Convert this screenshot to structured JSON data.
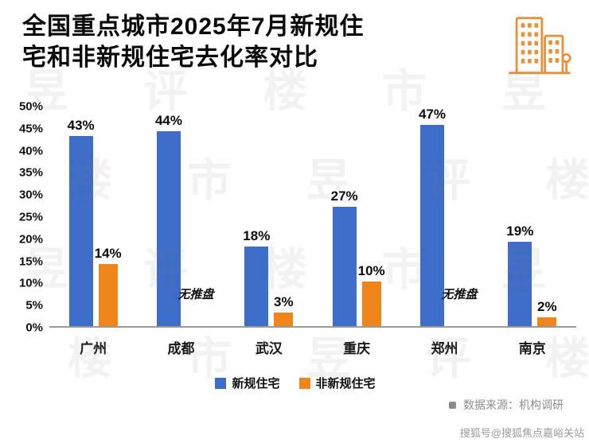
{
  "header": {
    "title_line1": "全国重点城市2025年7月新规住",
    "title_line2": "宅和非新规住宅去化率对比",
    "icon_color": "#E8913C"
  },
  "chart_data": {
    "type": "bar",
    "title": "全国重点城市2025年7月新规住宅和非新规住宅去化率对比",
    "categories": [
      "广州",
      "成都",
      "武汉",
      "重庆",
      "郑州",
      "南京"
    ],
    "series": [
      {
        "name": "新规住宅",
        "color": "#3E6DC9",
        "values": [
          43,
          44,
          18,
          27,
          47,
          19
        ]
      },
      {
        "name": "非新规住宅",
        "color": "#F08519",
        "values": [
          14,
          null,
          3,
          10,
          null,
          2
        ]
      }
    ],
    "no_data_label": "无推盘",
    "value_suffix": "%",
    "y_ticks": [
      "50%",
      "45%",
      "40%",
      "35%",
      "30%",
      "25%",
      "20%",
      "15%",
      "10%",
      "5%",
      "0%"
    ],
    "ylim": [
      0,
      50
    ],
    "grid": false,
    "legend_position": "bottom"
  },
  "footer": {
    "source_label": "数据来源：机构调研",
    "byline": "搜狐号@搜狐焦点嘉峪关站"
  },
  "watermark_chars": [
    "昱",
    "评",
    "楼",
    "市"
  ]
}
